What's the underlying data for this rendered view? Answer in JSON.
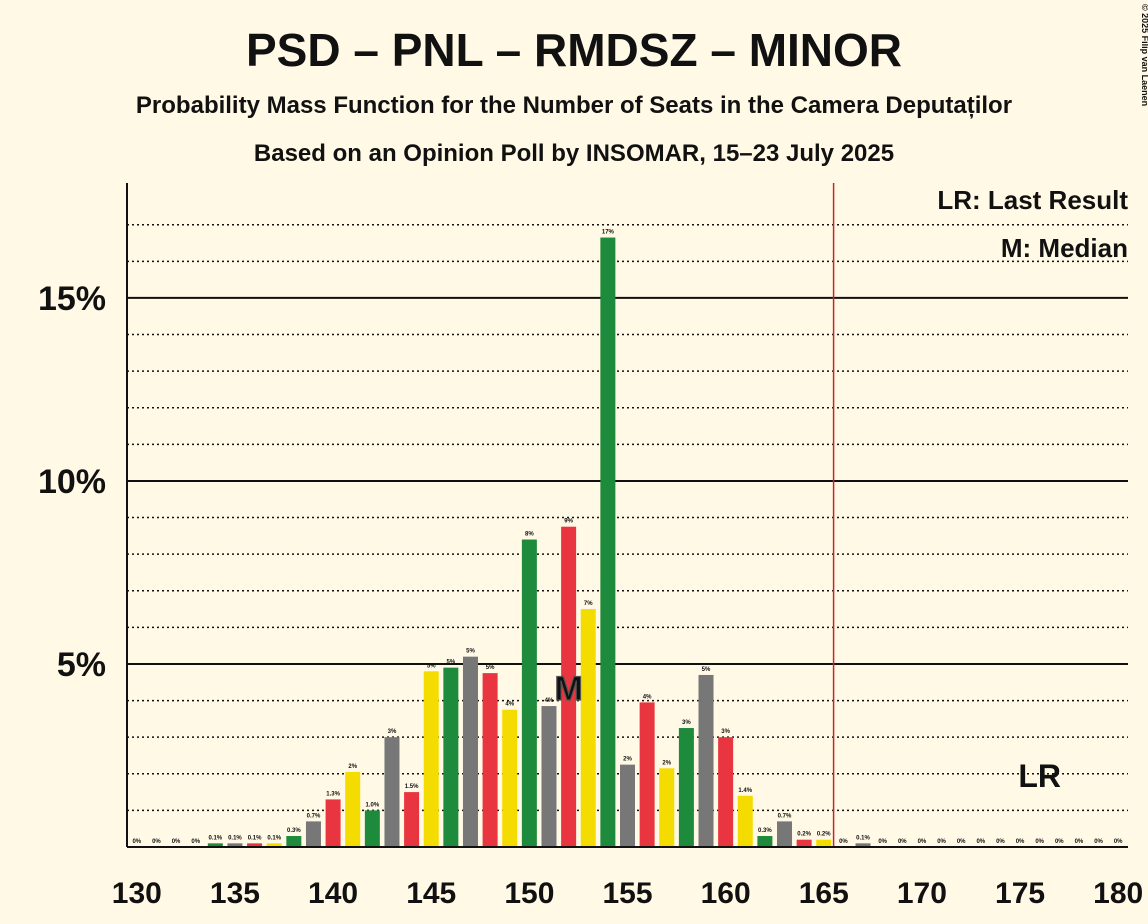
{
  "chart_data": {
    "type": "bar",
    "title": "PSD – PNL – RMDSZ – MINOR",
    "subtitle": "Probability Mass Function for the Number of Seats in the Camera Deputaților",
    "subtitle2": "Based on an Opinion Poll by INSOMAR, 15–23 July 2025",
    "copyright": "© 2025 Filip van Laenen",
    "x": [
      130,
      131,
      132,
      133,
      134,
      135,
      136,
      137,
      138,
      139,
      140,
      141,
      142,
      143,
      144,
      145,
      146,
      147,
      148,
      149,
      150,
      151,
      152,
      153,
      154,
      155,
      156,
      157,
      158,
      159,
      160,
      161,
      162,
      163,
      164,
      165,
      166,
      167,
      168,
      169,
      170,
      171,
      172,
      173,
      174,
      175,
      176,
      177,
      178,
      179,
      180
    ],
    "values": [
      0,
      0,
      0,
      0,
      0.1,
      0.1,
      0.1,
      0.1,
      0.3,
      0.7,
      1.3,
      2.05,
      1.0,
      3.0,
      1.5,
      4.8,
      4.9,
      5.2,
      4.75,
      3.75,
      8.4,
      3.85,
      8.75,
      6.5,
      16.65,
      2.25,
      3.95,
      2.15,
      3.25,
      4.7,
      3.0,
      1.4,
      0.3,
      0.7,
      0.2,
      0.2,
      0,
      0.1,
      0,
      0,
      0,
      0,
      0,
      0,
      0,
      0,
      0,
      0,
      0,
      0,
      0
    ],
    "value_labels": [
      "0%",
      "0%",
      "0%",
      "0%",
      "0.1%",
      "0.1%",
      "0.1%",
      "0.1%",
      "0.3%",
      "0.7%",
      "1.3%",
      "2%",
      "1.0%",
      "3%",
      "1.5%",
      "5%",
      "5%",
      "5%",
      "5%",
      "4%",
      "8%",
      "4%",
      "9%",
      "7%",
      "17%",
      "2%",
      "4%",
      "2%",
      "3%",
      "5%",
      "3%",
      "1.4%",
      "0.3%",
      "0.7%",
      "0.2%",
      "0.2%",
      "0%",
      "0.1%",
      "0%",
      "0%",
      "0%",
      "0%",
      "0%",
      "0%",
      "0%",
      "0%",
      "0%",
      "0%",
      "0%",
      "0%",
      "0%"
    ],
    "bar_colors": [
      "#1e8a3c",
      "#777777",
      "#e8353f",
      "#f5dc00"
    ],
    "xlim": [
      129.5,
      180.5
    ],
    "xticks": [
      130,
      135,
      140,
      145,
      150,
      155,
      160,
      165,
      170,
      175,
      180
    ],
    "ylim": [
      0,
      18.14
    ],
    "yticks": [
      {
        "value": 5,
        "label": "5%"
      },
      {
        "value": 10,
        "label": "10%"
      },
      {
        "value": 15,
        "label": "15%"
      }
    ],
    "minor_yticks": [
      1,
      2,
      3,
      4,
      6,
      7,
      8,
      9,
      11,
      12,
      13,
      14,
      16,
      17
    ],
    "majority_line": 165.5,
    "median": {
      "value": 152,
      "label": "M"
    },
    "last_result": {
      "value": 176,
      "label": "LR"
    },
    "legend": [
      "LR: Last Result",
      "M: Median"
    ]
  }
}
